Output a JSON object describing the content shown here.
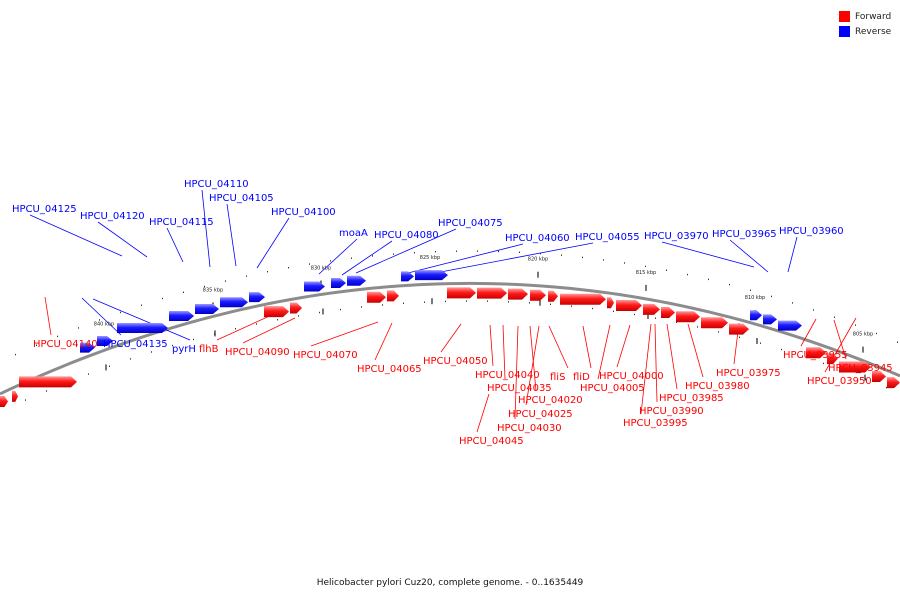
{
  "caption": "Helicobacter pylori Cuz20, complete genome. - 0..1635449",
  "colors": {
    "forward": "#ff0000",
    "reverse": "#0000ff",
    "backbone": "#8c8c8c"
  },
  "legend": [
    {
      "label": "Forward",
      "color": "#ff0000"
    },
    {
      "label": "Reverse",
      "color": "#0000ff"
    }
  ],
  "ticks": [
    {
      "label": "840 kbp"
    },
    {
      "label": "835 kbp"
    },
    {
      "label": "830 kbp"
    },
    {
      "label": "825 kbp"
    },
    {
      "label": "820 kbp"
    },
    {
      "label": "815 kbp"
    },
    {
      "label": "810 kbp"
    },
    {
      "label": "805 kbp"
    }
  ],
  "genes": [
    {
      "name": "HPCU_04125",
      "strand": "reverse"
    },
    {
      "name": "HPCU_04120",
      "strand": "reverse"
    },
    {
      "name": "HPCU_04115",
      "strand": "reverse"
    },
    {
      "name": "HPCU_04110",
      "strand": "reverse"
    },
    {
      "name": "HPCU_04105",
      "strand": "reverse"
    },
    {
      "name": "HPCU_04100",
      "strand": "reverse"
    },
    {
      "name": "moaA",
      "strand": "reverse"
    },
    {
      "name": "HPCU_04080",
      "strand": "reverse"
    },
    {
      "name": "HPCU_04075",
      "strand": "reverse"
    },
    {
      "name": "HPCU_04060",
      "strand": "reverse"
    },
    {
      "name": "HPCU_04055",
      "strand": "reverse"
    },
    {
      "name": "HPCU_03970",
      "strand": "reverse"
    },
    {
      "name": "HPCU_03965",
      "strand": "reverse"
    },
    {
      "name": "HPCU_03960",
      "strand": "reverse"
    },
    {
      "name": "HPCU_04135",
      "strand": "reverse"
    },
    {
      "name": "pyrH",
      "strand": "reverse"
    },
    {
      "name": "HPCU_04140",
      "strand": "forward"
    },
    {
      "name": "flhB",
      "strand": "forward"
    },
    {
      "name": "HPCU_04090",
      "strand": "forward"
    },
    {
      "name": "HPCU_04070",
      "strand": "forward"
    },
    {
      "name": "HPCU_04065",
      "strand": "forward"
    },
    {
      "name": "HPCU_04050",
      "strand": "forward"
    },
    {
      "name": "HPCU_04040",
      "strand": "forward"
    },
    {
      "name": "HPCU_04035",
      "strand": "forward"
    },
    {
      "name": "fliS",
      "strand": "forward"
    },
    {
      "name": "fliD",
      "strand": "forward"
    },
    {
      "name": "HPCU_04020",
      "strand": "forward"
    },
    {
      "name": "HPCU_04025",
      "strand": "forward"
    },
    {
      "name": "HPCU_04030",
      "strand": "forward"
    },
    {
      "name": "HPCU_04045",
      "strand": "forward"
    },
    {
      "name": "HPCU_04000",
      "strand": "forward"
    },
    {
      "name": "HPCU_04005",
      "strand": "forward"
    },
    {
      "name": "HPCU_03990",
      "strand": "forward"
    },
    {
      "name": "HPCU_03995",
      "strand": "forward"
    },
    {
      "name": "HPCU_03985",
      "strand": "forward"
    },
    {
      "name": "HPCU_03980",
      "strand": "forward"
    },
    {
      "name": "HPCU_03975",
      "strand": "forward"
    },
    {
      "name": "HPCU_03955",
      "strand": "forward"
    },
    {
      "name": "HPCU_03945",
      "strand": "forward"
    },
    {
      "name": "HPCU_03950",
      "strand": "forward"
    }
  ]
}
